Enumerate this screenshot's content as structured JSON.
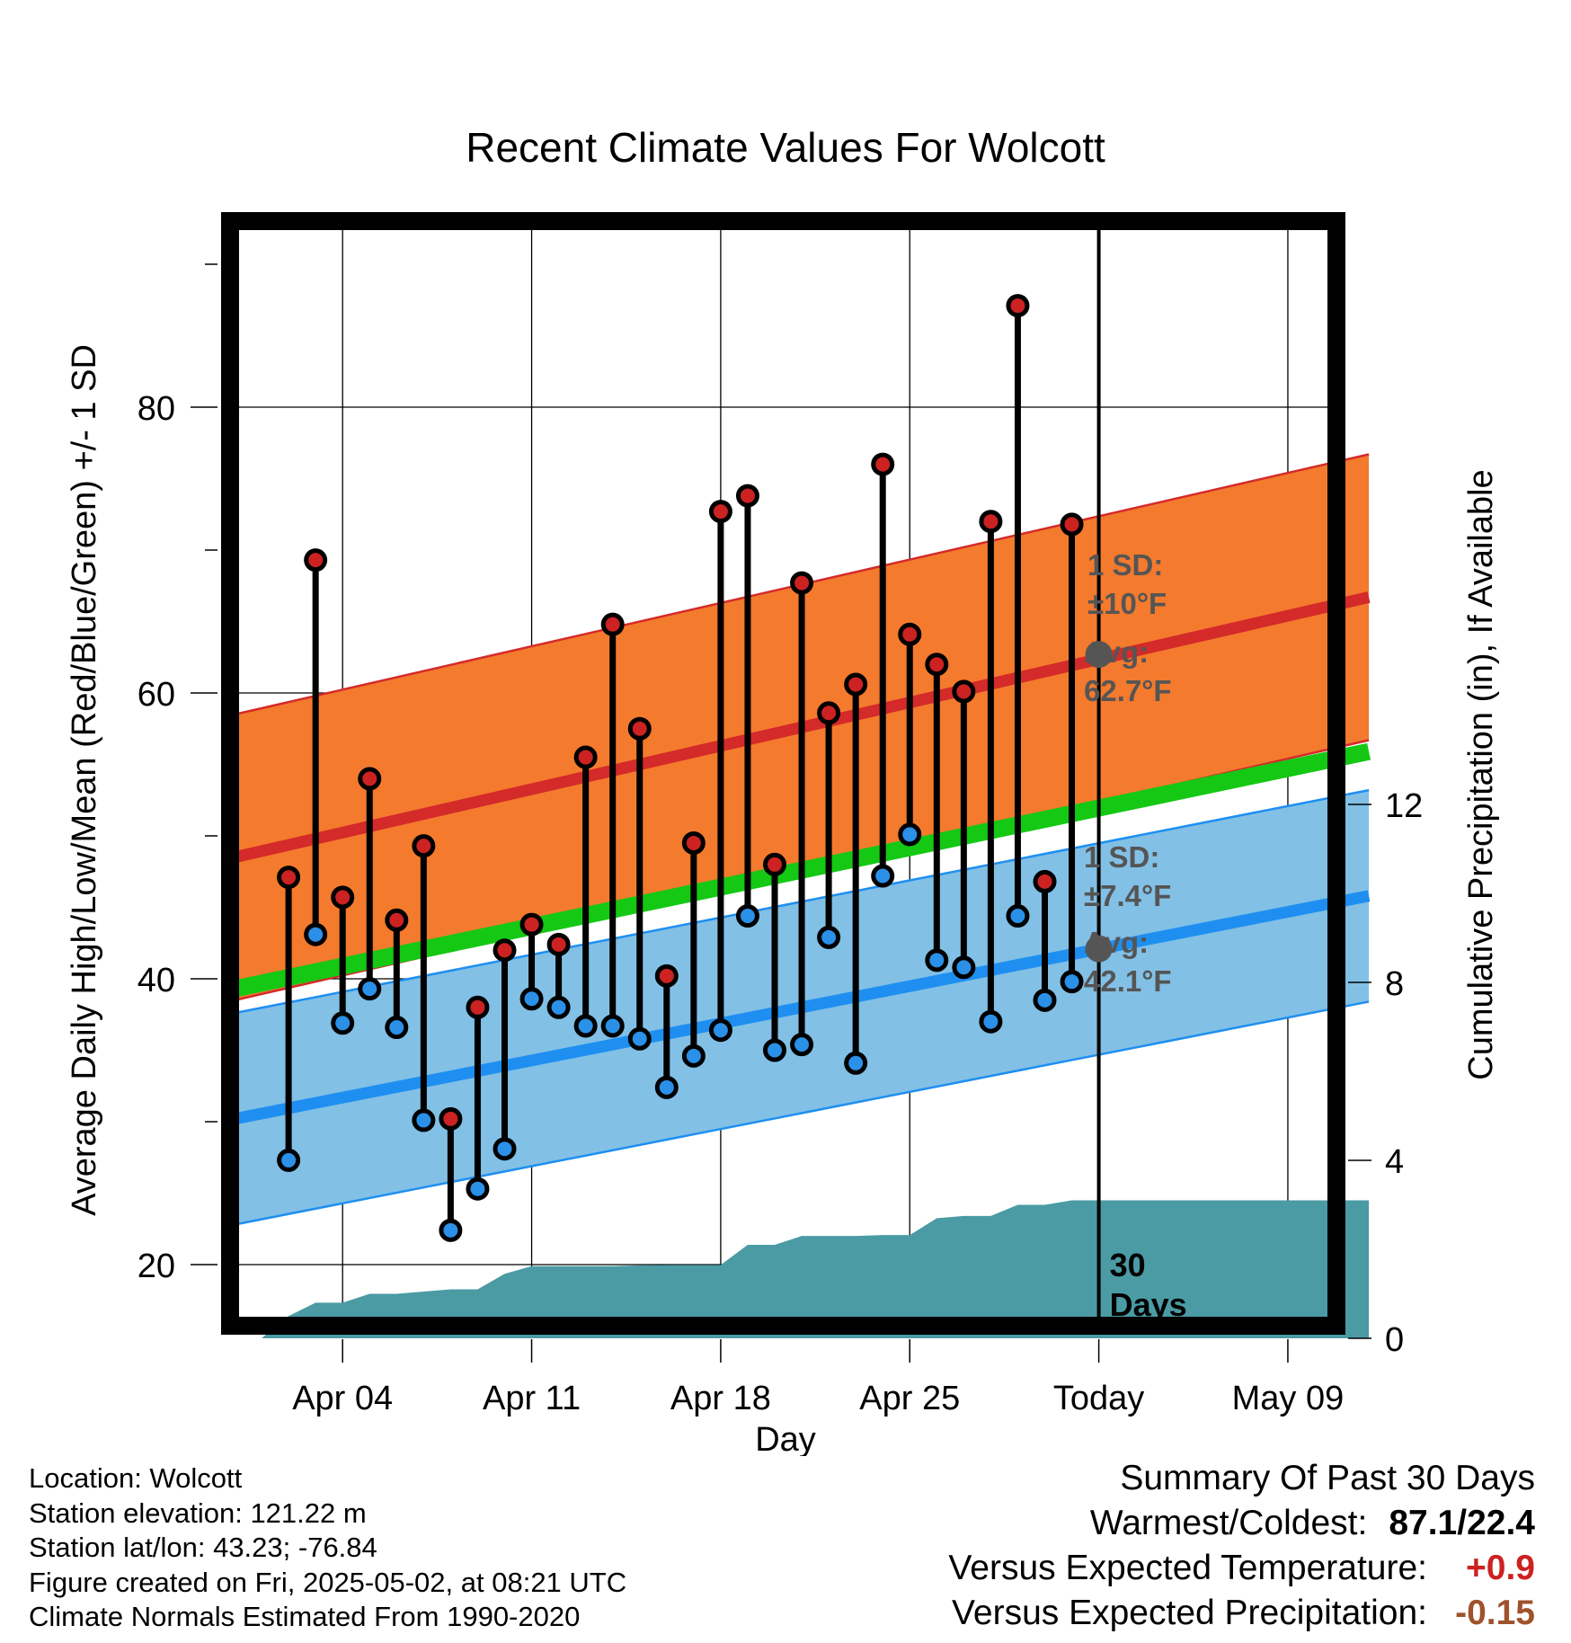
{
  "chart_data": {
    "type": "line",
    "title": "Recent Climate Values For Wolcott",
    "xlabel": "Day",
    "ylabel": "Average Daily High/Low/Mean (Red/Blue/Green) +/- 1 SD",
    "y2label": "Cumulative Precipitation (in), If Available",
    "x_range": [
      "2025-03-31",
      "2025-05-12"
    ],
    "ylim": [
      14,
      92
    ],
    "y2lim": [
      0,
      30
    ],
    "x_tick_labels": [
      "Apr 04",
      "Apr 11",
      "Apr 18",
      "Apr 25",
      "Today",
      "May 09"
    ],
    "x_tick_dates": [
      "2025-04-04",
      "2025-04-11",
      "2025-04-18",
      "2025-04-25",
      "2025-05-02",
      "2025-05-09"
    ],
    "y_ticks": [
      20,
      40,
      60,
      80
    ],
    "y2_ticks": [
      0,
      4,
      8,
      12
    ],
    "grid": true,
    "today": "2025-05-02",
    "today_label": "30\nDays",
    "normal_high": {
      "name": "Avg High",
      "dates": [
        "2025-03-31",
        "2025-05-12"
      ],
      "mean": [
        48.5,
        66.7
      ],
      "sd": 10,
      "today_value": 62.7,
      "sd_label": "1 SD:\n±10°F",
      "avg_label": "Avg:\n62.7°F",
      "band_color": "#f47a2d",
      "line_color": "#d42a2a"
    },
    "normal_low": {
      "name": "Avg Low",
      "dates": [
        "2025-03-31",
        "2025-05-12"
      ],
      "mean": [
        30.2,
        45.8
      ],
      "sd": 7.4,
      "today_value": 42.1,
      "sd_label": "1 SD:\n±7.4°F",
      "avg_label": "Avg:\n42.1°F",
      "band_color": "#82c0e6",
      "line_color": "#1e8ff0"
    },
    "normal_mean": {
      "name": "Avg Mean",
      "dates": [
        "2025-03-31",
        "2025-05-12"
      ],
      "values": [
        39.3,
        55.9
      ],
      "line_color": "#14c814"
    },
    "daily": {
      "dates": [
        "2025-04-02",
        "2025-04-03",
        "2025-04-04",
        "2025-04-05",
        "2025-04-06",
        "2025-04-07",
        "2025-04-08",
        "2025-04-09",
        "2025-04-10",
        "2025-04-11",
        "2025-04-12",
        "2025-04-13",
        "2025-04-14",
        "2025-04-15",
        "2025-04-16",
        "2025-04-17",
        "2025-04-18",
        "2025-04-19",
        "2025-04-20",
        "2025-04-21",
        "2025-04-22",
        "2025-04-23",
        "2025-04-24",
        "2025-04-25",
        "2025-04-26",
        "2025-04-27",
        "2025-04-28",
        "2025-04-29",
        "2025-04-30",
        "2025-05-01"
      ],
      "high": [
        47.1,
        69.3,
        45.7,
        54.0,
        44.1,
        49.3,
        30.2,
        38.0,
        42.0,
        43.8,
        42.4,
        55.5,
        64.8,
        57.5,
        40.2,
        49.5,
        72.7,
        73.8,
        48.0,
        67.7,
        58.6,
        60.6,
        76.0,
        64.1,
        62.0,
        60.1,
        72.0,
        87.1,
        46.8,
        71.8
      ],
      "low": [
        27.3,
        43.1,
        36.9,
        39.3,
        36.6,
        30.1,
        22.4,
        25.3,
        28.1,
        38.6,
        38.0,
        36.7,
        36.7,
        35.8,
        32.4,
        34.6,
        36.4,
        44.4,
        35.0,
        35.4,
        42.9,
        34.1,
        47.2,
        50.1,
        41.3,
        40.8,
        37.0,
        44.4,
        38.5,
        39.8
      ],
      "high_color": "#cc2222",
      "low_color": "#2a90e8"
    },
    "precip_cumulative": {
      "name": "Cumulative Precipitation (in)",
      "dates": [
        "2025-04-01",
        "2025-04-02",
        "2025-04-03",
        "2025-04-04",
        "2025-04-05",
        "2025-04-06",
        "2025-04-07",
        "2025-04-08",
        "2025-04-09",
        "2025-04-10",
        "2025-04-11",
        "2025-04-12",
        "2025-04-13",
        "2025-04-14",
        "2025-04-15",
        "2025-04-16",
        "2025-04-17",
        "2025-04-18",
        "2025-04-19",
        "2025-04-20",
        "2025-04-21",
        "2025-04-22",
        "2025-04-23",
        "2025-04-24",
        "2025-04-25",
        "2025-04-26",
        "2025-04-27",
        "2025-04-28",
        "2025-04-29",
        "2025-04-30",
        "2025-05-01",
        "2025-05-02",
        "2025-05-12"
      ],
      "values": [
        0.0,
        0.5,
        0.8,
        0.8,
        1.0,
        1.0,
        1.05,
        1.1,
        1.1,
        1.45,
        1.62,
        1.62,
        1.62,
        1.62,
        1.64,
        1.65,
        1.65,
        1.65,
        2.1,
        2.1,
        2.3,
        2.3,
        2.3,
        2.32,
        2.32,
        2.7,
        2.75,
        2.75,
        3.0,
        3.0,
        3.1,
        3.1,
        3.1
      ],
      "color": "#4a9ba4"
    }
  },
  "info": {
    "location": "Location: Wolcott",
    "elevation": "Station elevation: 121.22 m",
    "latlon": "Station lat/lon: 43.23; -76.84",
    "created": "Figure created on Fri, 2025-05-02, at 08:21 UTC",
    "normals": "Climate Normals Estimated From 1990-2020"
  },
  "summary": {
    "heading": "Summary Of Past 30 Days",
    "warmest_label": "Warmest/Coldest:",
    "warmest_value": "87.1/22.4",
    "temp_label": "Versus Expected Temperature:",
    "temp_value": "+0.9",
    "temp_color": "#cc2222",
    "precip_label": "Versus Expected Precipitation:",
    "precip_value": "-0.15",
    "precip_color": "#a0522d"
  }
}
